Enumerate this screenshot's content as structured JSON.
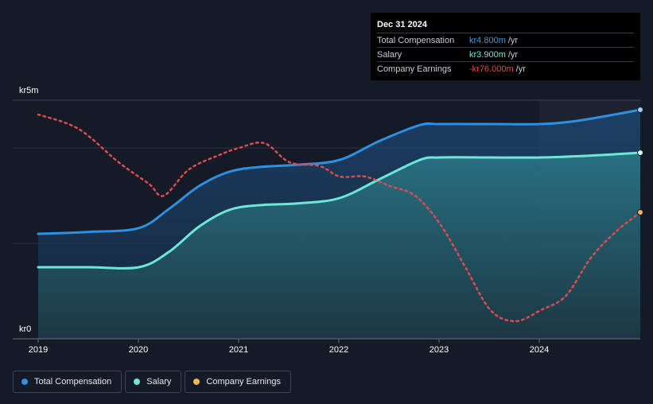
{
  "tooltip": {
    "date": "Dec 31 2024",
    "rows": [
      {
        "label": "Total Compensation",
        "value": "kr4.800m",
        "unit": "/yr",
        "color": "#3a9be6"
      },
      {
        "label": "Salary",
        "value": "kr3.900m",
        "unit": "/yr",
        "color": "#6ee8d6"
      },
      {
        "label": "Company Earnings",
        "value": "-kr76.000m",
        "unit": "/yr",
        "color": "#f0444b"
      }
    ]
  },
  "legend": [
    {
      "label": "Total Compensation",
      "color": "#2f8fe0"
    },
    {
      "label": "Salary",
      "color": "#6ee8d6"
    },
    {
      "label": "Company Earnings",
      "color": "#f2b35a"
    }
  ],
  "chart_data": {
    "type": "line",
    "ylabel_top": "kr5m",
    "ylabel_bottom": "kr0",
    "ylim": [
      0,
      5
    ],
    "xlim": [
      2019.0,
      2024.99
    ],
    "x_ticks": [
      "2019",
      "2020",
      "2021",
      "2022",
      "2023",
      "2024"
    ],
    "series": [
      {
        "name": "Total Compensation",
        "unit": "kr m",
        "x": [
          2019.0,
          2019.5,
          2020.0,
          2020.3,
          2020.6,
          2020.9,
          2021.2,
          2021.6,
          2022.0,
          2022.4,
          2022.8,
          2023.0,
          2023.5,
          2024.0,
          2024.3,
          2024.6,
          2024.99
        ],
        "values": [
          2.2,
          2.24,
          2.32,
          2.72,
          3.2,
          3.5,
          3.6,
          3.65,
          3.75,
          4.15,
          4.48,
          4.5,
          4.5,
          4.5,
          4.55,
          4.65,
          4.8
        ]
      },
      {
        "name": "Salary",
        "unit": "kr m",
        "x": [
          2019.0,
          2019.5,
          2020.0,
          2020.3,
          2020.6,
          2020.9,
          2021.2,
          2021.6,
          2022.0,
          2022.4,
          2022.8,
          2023.0,
          2023.5,
          2024.0,
          2024.5,
          2024.99
        ],
        "values": [
          1.5,
          1.5,
          1.5,
          1.82,
          2.35,
          2.7,
          2.8,
          2.84,
          2.95,
          3.35,
          3.75,
          3.8,
          3.8,
          3.8,
          3.84,
          3.9
        ]
      },
      {
        "name": "Company Earnings",
        "unit": "normalized",
        "x": [
          2019.0,
          2019.4,
          2019.8,
          2020.1,
          2020.25,
          2020.5,
          2020.8,
          2021.0,
          2021.25,
          2021.5,
          2021.8,
          2022.0,
          2022.25,
          2022.5,
          2022.75,
          2023.0,
          2023.25,
          2023.5,
          2023.75,
          2024.0,
          2024.25,
          2024.5,
          2024.75,
          2024.99
        ],
        "values": [
          4.7,
          4.4,
          3.7,
          3.25,
          3.0,
          3.55,
          3.85,
          4.0,
          4.1,
          3.7,
          3.62,
          3.4,
          3.4,
          3.2,
          3.0,
          2.4,
          1.5,
          0.6,
          0.37,
          0.6,
          0.9,
          1.7,
          2.25,
          2.65
        ]
      }
    ]
  }
}
